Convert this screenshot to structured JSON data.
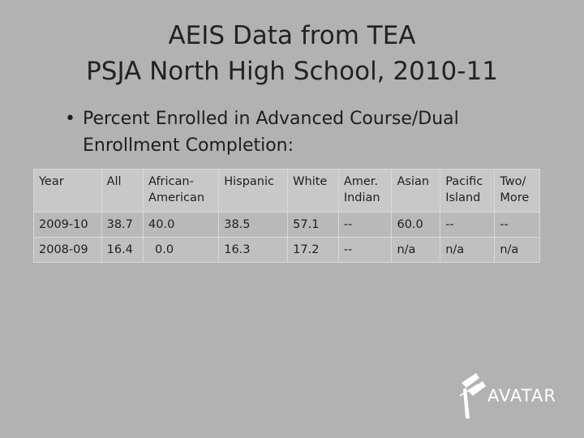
{
  "slide": {
    "title_line1": "AEIS Data from TEA",
    "title_line2": "PSJA North High School, 2010-11",
    "bullet_marker": "•",
    "bullet_line1": "Percent  Enrolled in Advanced Course/Dual",
    "bullet_line2": "Enrollment Completion:"
  },
  "table": {
    "headers": [
      {
        "line1": "Year",
        "line2": ""
      },
      {
        "line1": "All",
        "line2": ""
      },
      {
        "line1": "African-",
        "line2": "American"
      },
      {
        "line1": "Hispanic",
        "line2": ""
      },
      {
        "line1": "White",
        "line2": ""
      },
      {
        "line1": "Amer.",
        "line2": "Indian"
      },
      {
        "line1": "Asian",
        "line2": ""
      },
      {
        "line1": "Pacific",
        "line2": "Island"
      },
      {
        "line1": "Two/",
        "line2": "More"
      }
    ],
    "rows": [
      [
        "2009-10",
        "38.7",
        "40.0",
        "38.5",
        "57.1",
        "--",
        "60.0",
        "--",
        "--"
      ],
      [
        "2008-09",
        "16.4",
        "  0.0",
        "16.3",
        "17.2",
        "--",
        "n/a",
        "n/a",
        "n/a"
      ]
    ]
  },
  "logo": {
    "text": "AVATAR",
    "icon": "avatar-logo-mark"
  }
}
